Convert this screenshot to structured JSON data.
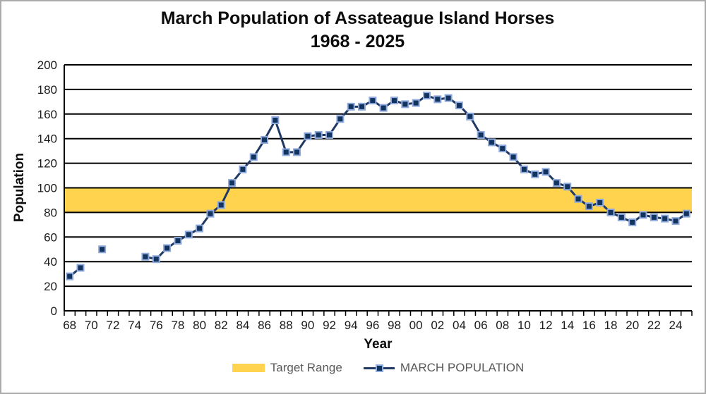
{
  "title": {
    "line1": "March Population of Assateague Island Horses",
    "line2": "1968 - 2025"
  },
  "axes": {
    "y_title": "Population",
    "x_title": "Year"
  },
  "legend": {
    "position": "bottom",
    "items": [
      {
        "label": "Target Range",
        "swatch": "yellow-band"
      },
      {
        "label": "MARCH POPULATION",
        "swatch": "navy-line-square-marker"
      }
    ]
  },
  "chart_data": {
    "type": "line",
    "title": "March Population of Assateague Island Horses 1968 - 2025",
    "xlabel": "Year",
    "ylabel": "Population",
    "ylim": [
      0,
      200
    ],
    "grid": "horizontal-black",
    "legend_position": "bottom",
    "y_ticks": [
      0,
      20,
      40,
      60,
      80,
      100,
      120,
      140,
      160,
      180,
      200
    ],
    "x_years": [
      1968,
      1969,
      1970,
      1971,
      1972,
      1973,
      1974,
      1975,
      1976,
      1977,
      1978,
      1979,
      1980,
      1981,
      1982,
      1983,
      1984,
      1985,
      1986,
      1987,
      1988,
      1989,
      1990,
      1991,
      1992,
      1993,
      1994,
      1995,
      1996,
      1997,
      1998,
      1999,
      2000,
      2001,
      2002,
      2003,
      2004,
      2005,
      2006,
      2007,
      2008,
      2009,
      2010,
      2011,
      2012,
      2013,
      2014,
      2015,
      2016,
      2017,
      2018,
      2019,
      2020,
      2021,
      2022,
      2023,
      2024,
      2025
    ],
    "x_tick_labels": [
      "68",
      "70",
      "72",
      "74",
      "76",
      "78",
      "80",
      "82",
      "84",
      "86",
      "88",
      "90",
      "92",
      "94",
      "96",
      "98",
      "00",
      "02",
      "04",
      "06",
      "08",
      "10",
      "12",
      "14",
      "16",
      "18",
      "20",
      "22",
      "24"
    ],
    "series": [
      {
        "name": "MARCH POPULATION",
        "values": [
          28,
          35,
          null,
          50,
          null,
          null,
          null,
          44,
          42,
          51,
          57,
          62,
          67,
          79,
          86,
          104,
          115,
          125,
          139,
          155,
          129,
          129,
          142,
          143,
          143,
          156,
          166,
          166,
          171,
          165,
          171,
          168,
          169,
          175,
          172,
          173,
          167,
          158,
          143,
          137,
          132,
          125,
          115,
          111,
          113,
          104,
          101,
          91,
          85,
          88,
          80,
          76,
          72,
          78,
          76,
          75,
          73,
          79
        ]
      }
    ],
    "missing_years": [
      1970,
      1972,
      1973,
      1974
    ],
    "target_range": {
      "label": "Target Range",
      "min": 80,
      "max": 100
    },
    "colors": {
      "band": "#FFD34D",
      "line": "#1F3864",
      "marker_fill": "#13335F",
      "marker_stroke": "#8FAADC",
      "gridline": "#000000",
      "axis_text": "#1a1a1a",
      "legend_text": "#595959",
      "title_text": "#0d0d0d"
    }
  }
}
